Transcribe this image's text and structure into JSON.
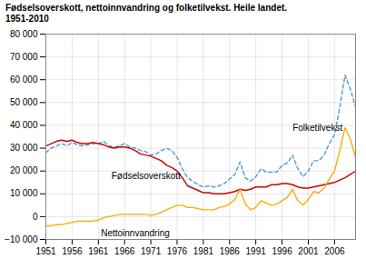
{
  "chart_data": {
    "type": "line",
    "title": "Fødselsoverskott, nettoinnvandring og folketilvekst. Heile landet.",
    "subtitle": "1951-2010",
    "x": [
      1951,
      1952,
      1953,
      1954,
      1955,
      1956,
      1957,
      1958,
      1959,
      1960,
      1961,
      1962,
      1963,
      1964,
      1965,
      1966,
      1967,
      1968,
      1969,
      1970,
      1971,
      1972,
      1973,
      1974,
      1975,
      1976,
      1977,
      1978,
      1979,
      1980,
      1981,
      1982,
      1983,
      1984,
      1985,
      1986,
      1987,
      1988,
      1989,
      1990,
      1991,
      1992,
      1993,
      1994,
      1995,
      1996,
      1997,
      1998,
      1999,
      2000,
      2001,
      2002,
      2003,
      2004,
      2005,
      2006,
      2007,
      2008,
      2009,
      2010
    ],
    "series": [
      {
        "name": "Folketilvekst",
        "color": "#5599cc",
        "line_style": "dashed",
        "values": [
          28000,
          30000,
          31000,
          32000,
          31000,
          32500,
          31500,
          31000,
          31500,
          32000,
          32000,
          33000,
          31000,
          30500,
          31000,
          32000,
          30500,
          30000,
          29000,
          28500,
          27000,
          27500,
          29000,
          30000,
          29000,
          26000,
          21000,
          17000,
          15500,
          14000,
          13000,
          13500,
          13000,
          13500,
          14500,
          16500,
          18500,
          24000,
          17000,
          15500,
          17500,
          21000,
          19500,
          19500,
          19500,
          22500,
          23500,
          27000,
          21000,
          17500,
          20000,
          24500,
          24500,
          27000,
          32000,
          36000,
          48000,
          62000,
          56000,
          48000
        ]
      },
      {
        "name": "Fødselsoverskott",
        "color": "#cc0000",
        "line_style": "solid",
        "values": [
          31000,
          32000,
          33000,
          33500,
          33000,
          33500,
          32500,
          32000,
          32000,
          32500,
          32000,
          31500,
          30500,
          30000,
          30500,
          30500,
          30000,
          29000,
          27500,
          27000,
          26500,
          25500,
          24500,
          22500,
          21500,
          20000,
          17000,
          13500,
          12500,
          11500,
          10500,
          10500,
          10000,
          10000,
          10000,
          10500,
          11000,
          12000,
          11500,
          12000,
          13000,
          13000,
          13000,
          14000,
          14000,
          14500,
          14500,
          14000,
          13000,
          12500,
          12500,
          13000,
          13500,
          14000,
          14500,
          15000,
          16000,
          17000,
          18500,
          20000
        ]
      },
      {
        "name": "Nettoinnvandring",
        "color": "#ffaa00",
        "line_style": "solid",
        "values": [
          -4000,
          -4000,
          -3500,
          -3500,
          -3000,
          -2500,
          -2000,
          -2000,
          -2000,
          -2000,
          -1500,
          -500,
          0,
          500,
          1000,
          1000,
          1000,
          1000,
          1000,
          1000,
          500,
          1000,
          2000,
          3000,
          4000,
          5000,
          5000,
          4000,
          4000,
          3500,
          3000,
          3000,
          3000,
          4000,
          4500,
          5500,
          7500,
          12000,
          5500,
          3000,
          4000,
          7000,
          6000,
          5000,
          5500,
          7000,
          8500,
          12000,
          7000,
          5000,
          7500,
          11000,
          10500,
          12500,
          16500,
          20000,
          29000,
          39000,
          34000,
          26000
        ]
      }
    ],
    "annotations": [
      {
        "text": "Fødselsoverskott",
        "x": 1963.5,
        "y": 16500
      },
      {
        "text": "Nettoinnvandring",
        "x": 1961.5,
        "y": -8500
      },
      {
        "text": "Folketilvekst",
        "x": 1998,
        "y": 37500
      }
    ],
    "xlim": [
      1951,
      2010
    ],
    "xticks": [
      1951,
      1956,
      1961,
      1966,
      1971,
      1976,
      1981,
      1986,
      1991,
      1996,
      2001,
      2006
    ],
    "ylim": [
      -10000,
      80000
    ],
    "yticks": [
      {
        "value": -10000,
        "label": "−10 000"
      },
      0,
      {
        "value": 10000,
        "label": "10 000"
      },
      {
        "value": 20000,
        "label": "20 000"
      },
      {
        "value": 30000,
        "label": "30 000"
      },
      {
        "value": 40000,
        "label": "40 000"
      },
      {
        "value": 50000,
        "label": "50 000"
      },
      {
        "value": 60000,
        "label": "60 000"
      },
      {
        "value": 70000,
        "label": "70 000"
      },
      {
        "value": 80000,
        "label": "80 000"
      }
    ],
    "grid": true
  }
}
